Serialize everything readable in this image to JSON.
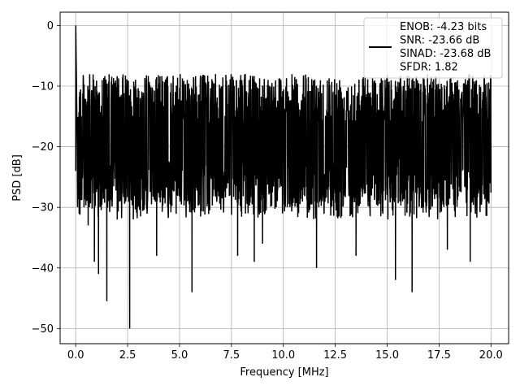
{
  "chart_data": {
    "type": "line",
    "title": "",
    "xlabel": "Frequency [MHz]",
    "ylabel": "PSD [dB]",
    "xlim": [
      -0.75,
      20.85
    ],
    "ylim": [
      -52.5,
      2.2
    ],
    "x_ticks": [
      0.0,
      2.5,
      5.0,
      7.5,
      10.0,
      12.5,
      15.0,
      17.5,
      20.0
    ],
    "x_tick_labels": [
      "0.0",
      "2.5",
      "5.0",
      "7.5",
      "10.0",
      "12.5",
      "15.0",
      "17.5",
      "20.0"
    ],
    "y_ticks": [
      0,
      -10,
      -20,
      -30,
      -40,
      -50
    ],
    "y_tick_labels": [
      "0",
      "−10",
      "−20",
      "−30",
      "−40",
      "−50"
    ],
    "grid": true,
    "legend_position": "top-right",
    "legend_entries": [
      "ENOB: -4.23 bits",
      "SNR: -23.66 dB",
      "SINAD: -23.68 dB",
      "SFDR: 1.82"
    ],
    "series": [
      {
        "color": "#000000",
        "x_range": [
          0.0,
          20.0
        ],
        "num_points": 2048,
        "typical_level_db": -18,
        "upper_envelope_db": -8,
        "lower_spikes_db": [
          {
            "x": 0.4,
            "y": -30
          },
          {
            "x": 0.6,
            "y": -33
          },
          {
            "x": 0.9,
            "y": -39
          },
          {
            "x": 1.1,
            "y": -41
          },
          {
            "x": 1.5,
            "y": -45.5
          },
          {
            "x": 2.0,
            "y": -32
          },
          {
            "x": 2.6,
            "y": -50
          },
          {
            "x": 3.9,
            "y": -38
          },
          {
            "x": 5.6,
            "y": -44
          },
          {
            "x": 7.8,
            "y": -38
          },
          {
            "x": 8.6,
            "y": -39
          },
          {
            "x": 9.0,
            "y": -36
          },
          {
            "x": 11.6,
            "y": -40
          },
          {
            "x": 13.5,
            "y": -38
          },
          {
            "x": 15.4,
            "y": -42
          },
          {
            "x": 16.2,
            "y": -44
          },
          {
            "x": 17.9,
            "y": -37
          },
          {
            "x": 19.0,
            "y": -39
          }
        ],
        "start_points_db": [
          {
            "x": 0.0,
            "y": -24
          },
          {
            "x": 0.005,
            "y": 0
          },
          {
            "x": 0.02,
            "y": -5
          },
          {
            "x": 0.04,
            "y": -10
          },
          {
            "x": 0.07,
            "y": -20
          }
        ]
      }
    ]
  }
}
